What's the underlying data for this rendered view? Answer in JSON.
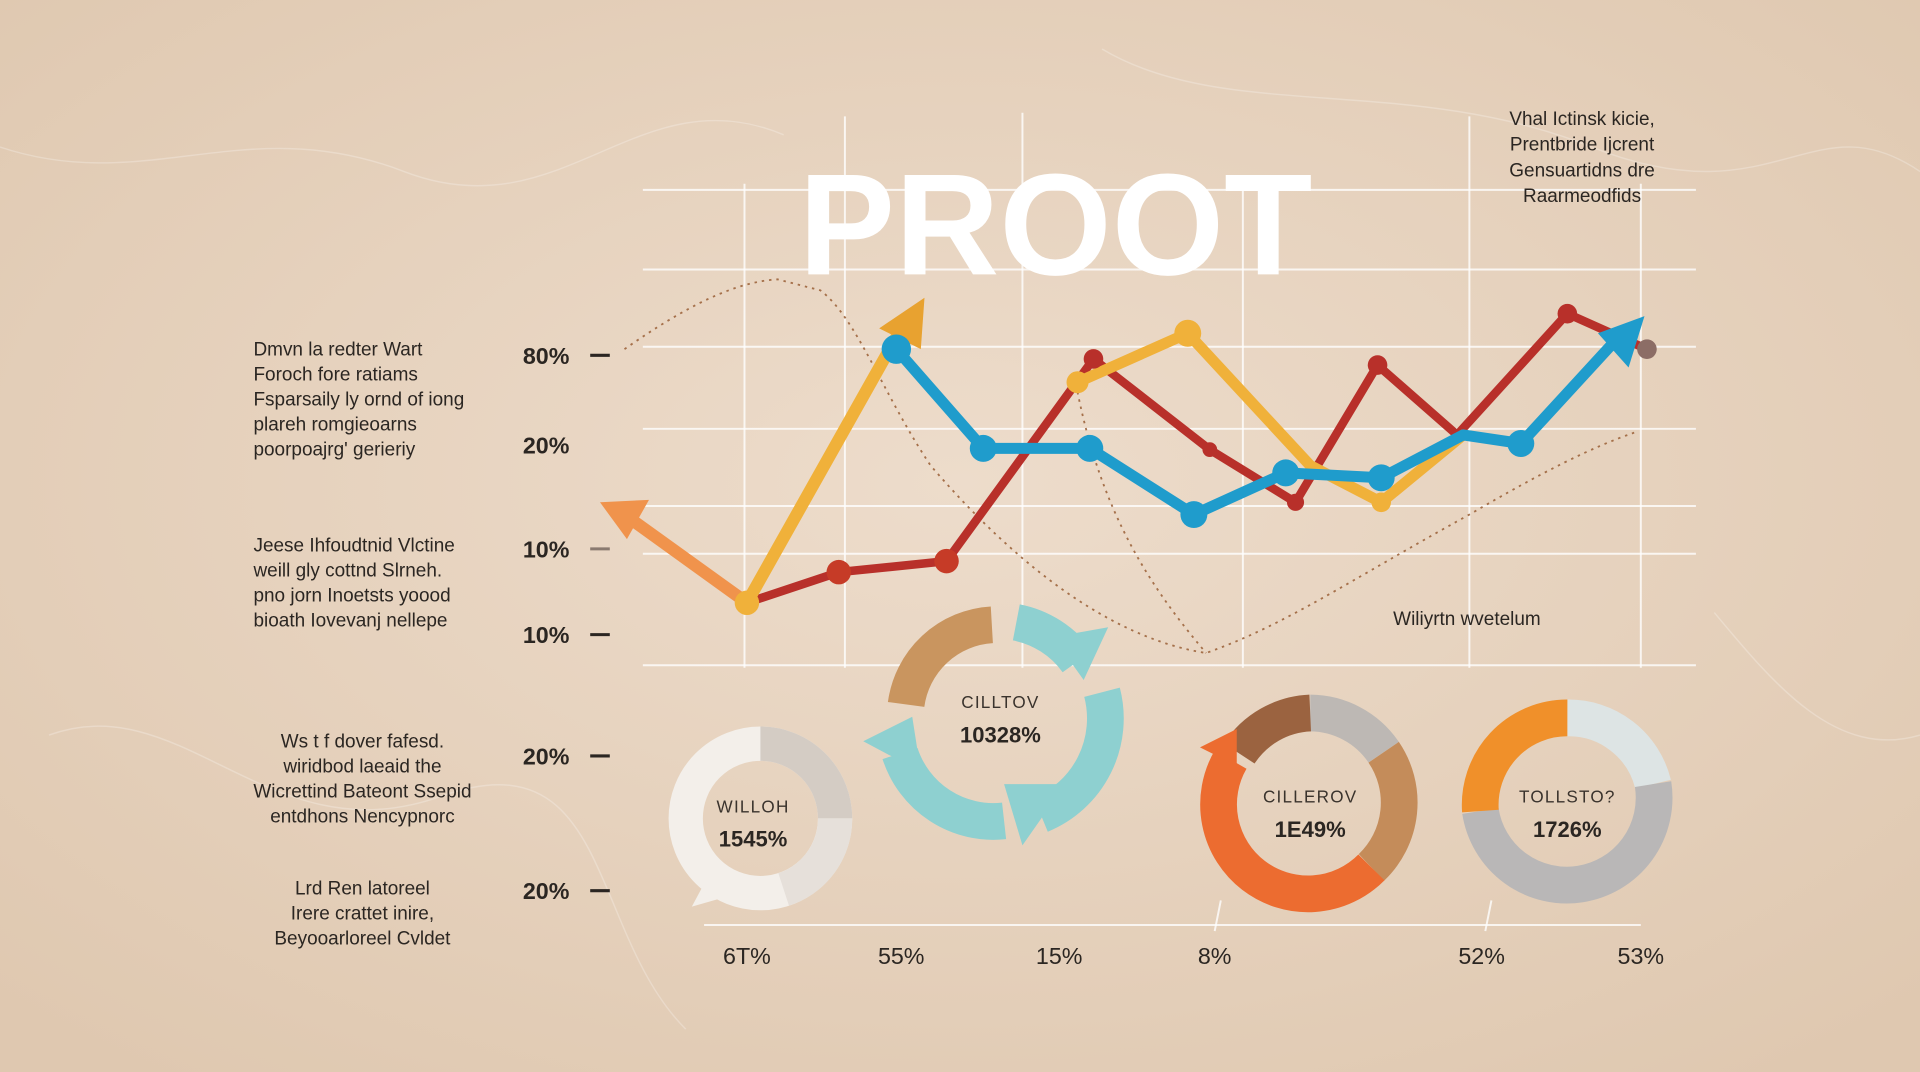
{
  "title": "PROOT",
  "note_top_right": [
    "Vhal Ictinsk kicie,",
    "Prentbride Ijcrent",
    "Gensuartidns dre",
    "Raarmeodfids"
  ],
  "left_notes": [
    [
      "Dmvn la redter Wart",
      "Foroch fore ratiams",
      "Fsparsaily ly ornd of iong",
      "plareh romgieoarns",
      "poorpoajrg' gerieriy"
    ],
    [
      "Jeese Ihfoudtnid Vlctine",
      "weill gly cottnd Slrneh.",
      "pno jorn Inoetsts yoood",
      "bioath Iovevanj nellepe"
    ],
    [
      "Ws t f dover fafesd.",
      "wiridbod laeaid the",
      "Wicrettind Bateont Ssepid",
      "entdhons Nencypnorc"
    ],
    [
      "Lrd Ren latoreel",
      "Irere crattet inire,",
      "Beyooarloreel Cvldet"
    ]
  ],
  "y_labels": [
    "80%",
    "20%",
    "10%",
    "10%",
    "20%",
    "20%"
  ],
  "x_labels": [
    "6T%",
    "55%",
    "15%",
    "8%",
    "52%",
    "53%"
  ],
  "annotation": "Wiliyrtn wvetelum",
  "donuts": [
    {
      "label": "WILLOH",
      "value": "1545%"
    },
    {
      "label": "CILLTOV",
      "value": "10328%"
    },
    {
      "label": "CILLEROV",
      "value": "1E49%"
    },
    {
      "label": "TOLLSTO?",
      "value": "1726%"
    }
  ]
}
